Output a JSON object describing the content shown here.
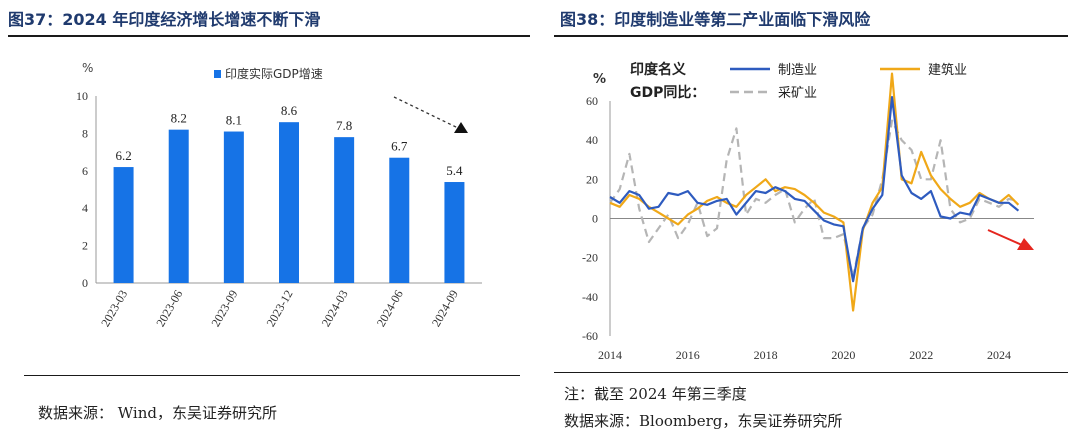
{
  "left": {
    "title": "图37：2024 年印度经济增长增速不断下滑",
    "source": "数据来源：   Wind，东吴证券研究所",
    "chart_data": {
      "type": "bar",
      "unit_label": "%",
      "legend_label": "印度实际GDP增速",
      "categories": [
        "2023-03",
        "2023-06",
        "2023-09",
        "2023-12",
        "2024-03",
        "2024-06",
        "2024-09"
      ],
      "values": [
        6.2,
        8.2,
        8.1,
        8.6,
        7.8,
        6.7,
        5.4
      ],
      "ylim": [
        0,
        10
      ],
      "yticks": [
        0,
        2,
        4,
        6,
        8,
        10
      ],
      "bar_color": "#1673e6",
      "annotation": "dashed downward trend arrow (top-right)"
    }
  },
  "right": {
    "title": "图38：印度制造业等第二产业面临下滑风险",
    "note": "注：截至 2024 年第三季度",
    "source": "数据来源：Bloomberg，东吴证券研究所",
    "chart_data": {
      "type": "line",
      "unit_label": "%",
      "legend_title_line1": "印度名义",
      "legend_title_line2": "GDP同比：",
      "ylim": [
        -60,
        60
      ],
      "yticks": [
        -60,
        -40,
        -20,
        0,
        20,
        40,
        60
      ],
      "xlim": [
        2014.0,
        2024.9
      ],
      "xticks": [
        2014,
        2016,
        2018,
        2020,
        2022,
        2024
      ],
      "annotation": "red downward arrow (right)",
      "series": [
        {
          "name": "制造业",
          "color": "#2e5bbf",
          "dash": "solid",
          "x": [
            2014.0,
            2014.25,
            2014.5,
            2014.75,
            2015.0,
            2015.25,
            2015.5,
            2015.75,
            2016.0,
            2016.25,
            2016.5,
            2016.75,
            2017.0,
            2017.25,
            2017.5,
            2017.75,
            2018.0,
            2018.25,
            2018.5,
            2018.75,
            2019.0,
            2019.25,
            2019.5,
            2019.75,
            2020.0,
            2020.25,
            2020.5,
            2020.75,
            2021.0,
            2021.25,
            2021.5,
            2021.75,
            2022.0,
            2022.25,
            2022.5,
            2022.75,
            2023.0,
            2023.25,
            2023.5,
            2023.75,
            2024.0,
            2024.25,
            2024.5
          ],
          "y": [
            11,
            8,
            14,
            12,
            5,
            6,
            13,
            12,
            14,
            8,
            7,
            9,
            10,
            2,
            8,
            14,
            13,
            16,
            14,
            10,
            9,
            4,
            -1,
            -3,
            -4,
            -32,
            -5,
            5,
            12,
            62,
            22,
            13,
            10,
            14,
            1,
            0,
            3,
            2,
            12,
            10,
            8,
            8,
            4
          ]
        },
        {
          "name": "建筑业",
          "color": "#f0a818",
          "dash": "solid",
          "x": [
            2014.0,
            2014.25,
            2014.5,
            2014.75,
            2015.0,
            2015.25,
            2015.5,
            2015.75,
            2016.0,
            2016.25,
            2016.5,
            2016.75,
            2017.0,
            2017.25,
            2017.5,
            2017.75,
            2018.0,
            2018.25,
            2018.5,
            2018.75,
            2019.0,
            2019.25,
            2019.5,
            2019.75,
            2020.0,
            2020.25,
            2020.5,
            2020.75,
            2021.0,
            2021.25,
            2021.5,
            2021.75,
            2022.0,
            2022.25,
            2022.5,
            2022.75,
            2023.0,
            2023.25,
            2023.5,
            2023.75,
            2024.0,
            2024.25,
            2024.5
          ],
          "y": [
            8,
            6,
            12,
            10,
            6,
            3,
            0,
            -3,
            2,
            5,
            9,
            11,
            8,
            6,
            12,
            16,
            20,
            14,
            16,
            15,
            12,
            8,
            3,
            1,
            -2,
            -47,
            -6,
            8,
            16,
            74,
            20,
            18,
            34,
            22,
            15,
            10,
            6,
            8,
            13,
            10,
            8,
            12,
            7
          ]
        },
        {
          "name": "采矿业",
          "color": "#b5b5b5",
          "dash": "dashed",
          "x": [
            2014.0,
            2014.25,
            2014.5,
            2014.75,
            2015.0,
            2015.25,
            2015.5,
            2015.75,
            2016.0,
            2016.25,
            2016.5,
            2016.75,
            2017.0,
            2017.25,
            2017.5,
            2017.75,
            2018.0,
            2018.25,
            2018.5,
            2018.75,
            2019.0,
            2019.25,
            2019.5,
            2019.75,
            2020.0,
            2020.25,
            2020.5,
            2020.75,
            2021.0,
            2021.25,
            2021.5,
            2021.75,
            2022.0,
            2022.25,
            2022.5,
            2022.75,
            2023.0,
            2023.25,
            2023.5,
            2023.75,
            2024.0,
            2024.25,
            2024.5
          ],
          "y": [
            8,
            15,
            33,
            5,
            -12,
            -5,
            2,
            -10,
            -3,
            8,
            -9,
            -5,
            30,
            46,
            2,
            10,
            8,
            12,
            15,
            -2,
            5,
            10,
            -10,
            -10,
            -8,
            -30,
            -5,
            2,
            20,
            50,
            40,
            35,
            20,
            20,
            40,
            5,
            -2,
            0,
            10,
            8,
            6,
            10,
            9
          ]
        }
      ]
    }
  }
}
